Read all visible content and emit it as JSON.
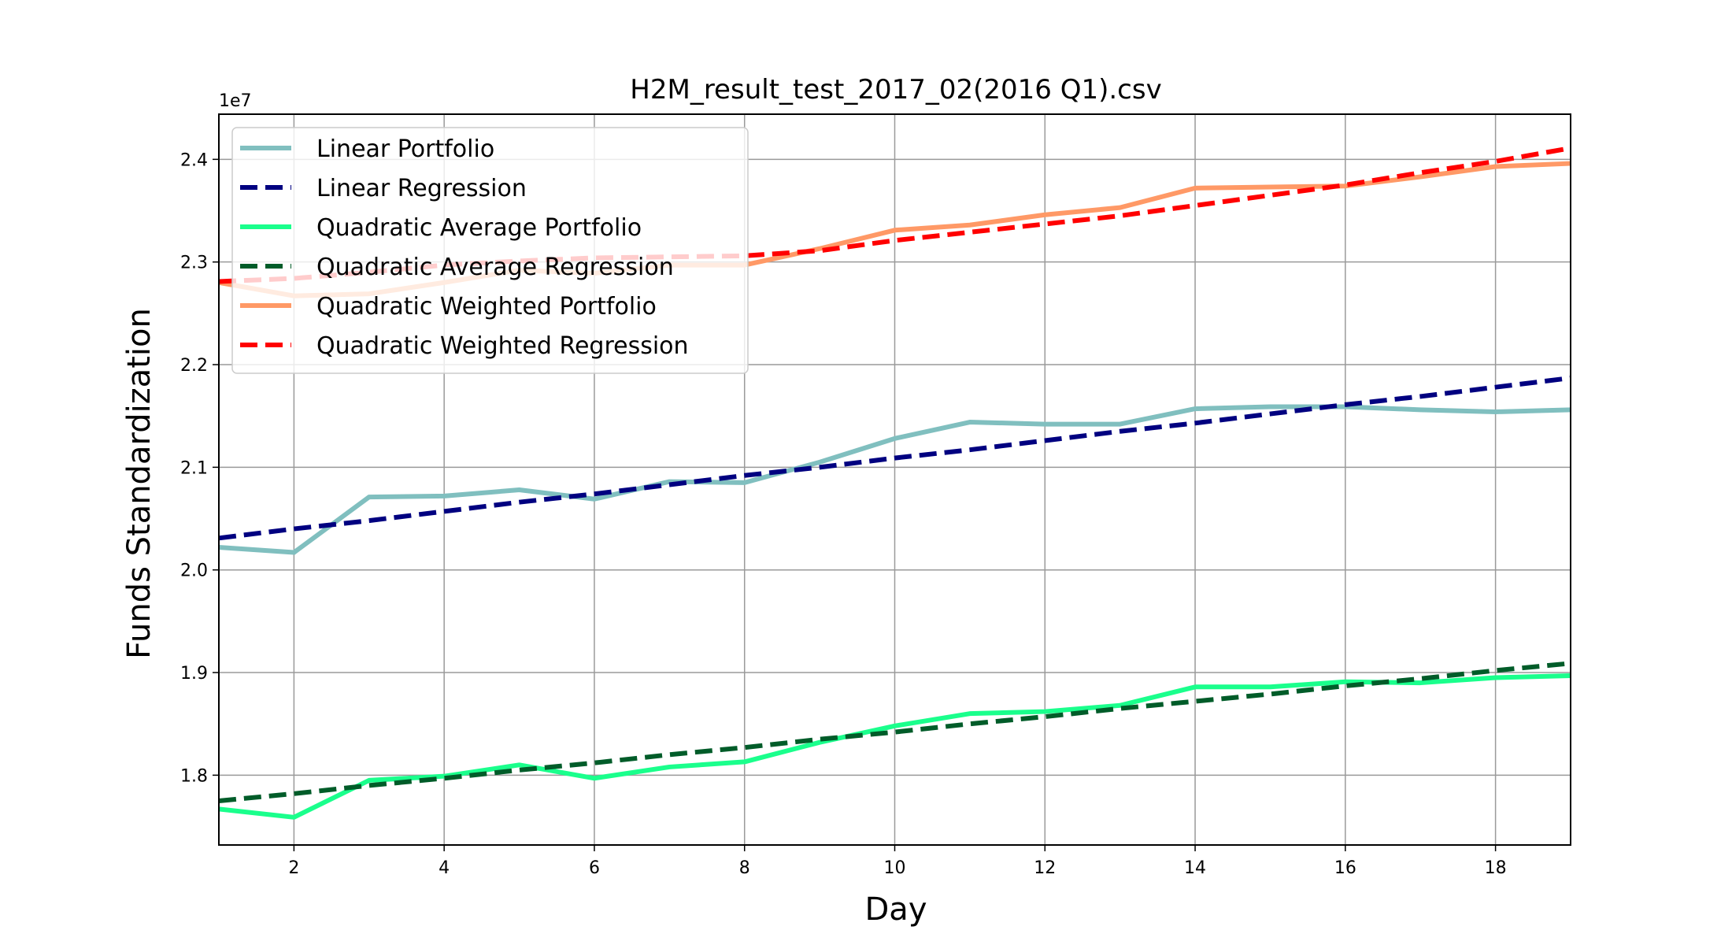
{
  "chart_data": {
    "type": "line",
    "title": "H2M_result_test_2017_02(2016 Q1).csv",
    "xlabel": "Day",
    "ylabel": "Funds Standardization",
    "y_offset_label": "1e7",
    "xlim": [
      1,
      19
    ],
    "ylim": [
      1.732,
      2.444
    ],
    "x_ticks": [
      2,
      4,
      6,
      8,
      10,
      12,
      14,
      16,
      18
    ],
    "y_ticks": [
      1.8,
      1.9,
      2.0,
      2.1,
      2.2,
      2.3,
      2.4
    ],
    "grid": true,
    "legend_position": "top-left",
    "x": [
      1,
      2,
      3,
      4,
      5,
      6,
      7,
      8,
      9,
      10,
      11,
      12,
      13,
      14,
      15,
      16,
      17,
      18,
      19
    ],
    "series": [
      {
        "name": "Linear Portfolio",
        "style": "solid",
        "color": "#80BFBF",
        "values": [
          2.022,
          2.017,
          2.071,
          2.072,
          2.078,
          2.069,
          2.086,
          2.085,
          2.105,
          2.128,
          2.144,
          2.142,
          2.142,
          2.157,
          2.159,
          2.159,
          2.156,
          2.154,
          2.156
        ]
      },
      {
        "name": "Linear Regression",
        "style": "dashed",
        "color": "#000080",
        "values": [
          2.031,
          2.04,
          2.048,
          2.057,
          2.066,
          2.074,
          2.083,
          2.092,
          2.1,
          2.109,
          2.117,
          2.126,
          2.135,
          2.143,
          2.152,
          2.161,
          2.169,
          2.178,
          2.187
        ]
      },
      {
        "name": "Quadratic Average Portfolio",
        "style": "solid",
        "color": "#1AFF8C",
        "values": [
          1.767,
          1.759,
          1.795,
          1.799,
          1.81,
          1.797,
          1.808,
          1.813,
          1.832,
          1.848,
          1.86,
          1.862,
          1.868,
          1.886,
          1.886,
          1.891,
          1.89,
          1.895,
          1.897
        ]
      },
      {
        "name": "Quadratic Average Regression",
        "style": "dashed",
        "color": "#005C29",
        "values": [
          1.775,
          1.782,
          1.79,
          1.797,
          1.805,
          1.812,
          1.82,
          1.827,
          1.835,
          1.842,
          1.85,
          1.857,
          1.865,
          1.872,
          1.879,
          1.887,
          1.894,
          1.902,
          1.909
        ]
      },
      {
        "name": "Quadratic Weighted Portfolio",
        "style": "solid",
        "color": "#FF9966",
        "values": [
          2.28,
          2.267,
          2.269,
          2.28,
          2.292,
          2.289,
          2.297,
          2.297,
          2.313,
          2.331,
          2.336,
          2.346,
          2.353,
          2.372,
          2.373,
          2.374,
          2.383,
          2.393,
          2.396
        ]
      },
      {
        "name": "Quadratic Weighted Regression",
        "style": "dashed",
        "color": "#FF0000",
        "values": [
          2.281,
          2.284,
          2.29,
          2.297,
          2.301,
          2.304,
          2.305,
          2.306,
          2.311,
          2.321,
          2.329,
          2.337,
          2.345,
          2.355,
          2.365,
          2.375,
          2.387,
          2.398,
          2.411
        ]
      }
    ]
  }
}
